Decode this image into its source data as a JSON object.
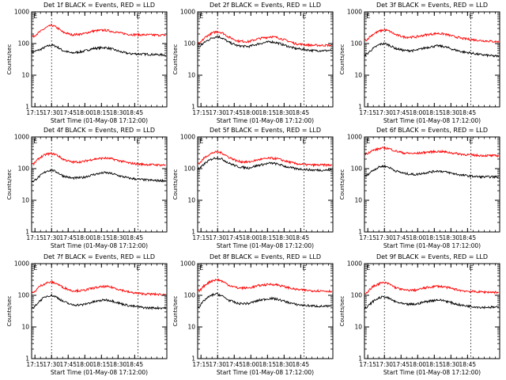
{
  "figure": {
    "background": "#ffffff",
    "events_color": "#000000",
    "lld_color": "#ff0000"
  },
  "chart_data": [
    {
      "type": "line",
      "title": "Det 1f BLACK = Events, RED = LLD",
      "xlabel": "Start Time (01-May-08 17:12:00)",
      "ylabel": "Counts/sec",
      "y_scale": "log",
      "ylim": [
        1,
        1000
      ],
      "xticks": [
        "17:15",
        "17:30",
        "17:45",
        "18:00",
        "18:15",
        "18:30",
        "18:45"
      ],
      "yticks": [
        "1",
        "10",
        "100",
        "1000"
      ],
      "markers": [
        {
          "label": "E",
          "x_minutes": 3
        },
        {
          "label": "E",
          "x_minutes": 96
        }
      ],
      "dotted_lines_minutes": [
        18,
        96
      ],
      "series": [
        {
          "name": "Events",
          "color": "#000000",
          "x_minutes": [
            2,
            8,
            14,
            18,
            22,
            28,
            36,
            46,
            56,
            66,
            72,
            80,
            88,
            96,
            104,
            112,
            118
          ],
          "values": [
            55,
            65,
            82,
            90,
            82,
            60,
            50,
            56,
            70,
            75,
            68,
            55,
            48,
            47,
            46,
            45,
            44
          ]
        },
        {
          "name": "LLD",
          "color": "#ff0000",
          "x_minutes": [
            2,
            8,
            14,
            18,
            22,
            28,
            36,
            46,
            56,
            66,
            72,
            80,
            88,
            96,
            104,
            112,
            118
          ],
          "values": [
            170,
            240,
            330,
            380,
            330,
            230,
            190,
            200,
            250,
            265,
            245,
            215,
            195,
            190,
            188,
            186,
            185
          ]
        }
      ]
    },
    {
      "type": "line",
      "title": "Det 2f BLACK = Events, RED = LLD",
      "xlabel": "Start Time (01-May-08 17:12:00)",
      "ylabel": "Counts/sec",
      "y_scale": "log",
      "ylim": [
        1,
        1000
      ],
      "xticks": [
        "17:15",
        "17:30",
        "17:45",
        "18:00",
        "18:15",
        "18:30",
        "18:45"
      ],
      "yticks": [
        "1",
        "10",
        "100",
        "1000"
      ],
      "markers": [
        {
          "label": "E",
          "x_minutes": 3
        },
        {
          "label": "E",
          "x_minutes": 96
        }
      ],
      "dotted_lines_minutes": [
        18,
        96
      ],
      "series": [
        {
          "name": "Events",
          "color": "#000000",
          "x_minutes": [
            2,
            8,
            14,
            18,
            22,
            28,
            36,
            46,
            56,
            66,
            72,
            80,
            88,
            96,
            104,
            112,
            118
          ],
          "values": [
            80,
            120,
            155,
            170,
            150,
            110,
            85,
            80,
            100,
            115,
            105,
            85,
            70,
            65,
            60,
            60,
            60
          ]
        },
        {
          "name": "LLD",
          "color": "#ff0000",
          "x_minutes": [
            2,
            8,
            14,
            18,
            22,
            28,
            36,
            46,
            56,
            66,
            72,
            80,
            88,
            96,
            104,
            112,
            118
          ],
          "values": [
            100,
            170,
            220,
            240,
            220,
            160,
            120,
            115,
            145,
            165,
            155,
            125,
            100,
            92,
            88,
            88,
            88
          ]
        }
      ]
    },
    {
      "type": "line",
      "title": "Det 3f BLACK = Events, RED = LLD",
      "xlabel": "Start Time (01-May-08 17:12:00)",
      "ylabel": "Counts/sec",
      "y_scale": "log",
      "ylim": [
        1,
        1000
      ],
      "xticks": [
        "17:15",
        "17:30",
        "17:45",
        "18:00",
        "18:15",
        "18:30",
        "18:45"
      ],
      "yticks": [
        "1",
        "10",
        "100",
        "1000"
      ],
      "markers": [
        {
          "label": "E",
          "x_minutes": 3
        },
        {
          "label": "E",
          "x_minutes": 96
        }
      ],
      "dotted_lines_minutes": [
        18,
        96
      ],
      "series": [
        {
          "name": "Events",
          "color": "#000000",
          "x_minutes": [
            2,
            8,
            14,
            18,
            22,
            28,
            36,
            46,
            56,
            66,
            72,
            80,
            88,
            96,
            104,
            112,
            118
          ],
          "values": [
            45,
            70,
            95,
            100,
            90,
            70,
            60,
            60,
            75,
            85,
            80,
            65,
            55,
            50,
            45,
            42,
            40
          ]
        },
        {
          "name": "LLD",
          "color": "#ff0000",
          "x_minutes": [
            2,
            8,
            14,
            18,
            22,
            28,
            36,
            46,
            56,
            66,
            72,
            80,
            88,
            96,
            104,
            112,
            118
          ],
          "values": [
            130,
            200,
            250,
            270,
            250,
            190,
            160,
            160,
            190,
            210,
            200,
            170,
            145,
            135,
            125,
            120,
            115
          ]
        }
      ]
    },
    {
      "type": "line",
      "title": "Det 4f BLACK = Events, RED = LLD",
      "xlabel": "Start Time (01-May-08 17:12:00)",
      "ylabel": "Counts/sec",
      "y_scale": "log",
      "ylim": [
        1,
        1000
      ],
      "xticks": [
        "17:15",
        "17:30",
        "17:45",
        "18:00",
        "18:15",
        "18:30",
        "18:45"
      ],
      "yticks": [
        "1",
        "10",
        "100",
        "1000"
      ],
      "markers": [
        {
          "label": "E",
          "x_minutes": 3
        },
        {
          "label": "E",
          "x_minutes": 96
        }
      ],
      "dotted_lines_minutes": [
        18,
        96
      ],
      "series": [
        {
          "name": "Events",
          "color": "#000000",
          "x_minutes": [
            2,
            8,
            14,
            18,
            22,
            28,
            36,
            46,
            56,
            66,
            72,
            80,
            88,
            96,
            104,
            112,
            118
          ],
          "values": [
            40,
            60,
            85,
            90,
            80,
            60,
            50,
            52,
            65,
            75,
            70,
            58,
            50,
            46,
            44,
            42,
            42
          ]
        },
        {
          "name": "LLD",
          "color": "#ff0000",
          "x_minutes": [
            2,
            8,
            14,
            18,
            22,
            28,
            36,
            46,
            56,
            66,
            72,
            80,
            88,
            96,
            104,
            112,
            118
          ],
          "values": [
            140,
            230,
            290,
            300,
            280,
            200,
            160,
            165,
            200,
            215,
            205,
            175,
            150,
            140,
            135,
            132,
            130
          ]
        }
      ]
    },
    {
      "type": "line",
      "title": "Det 5f BLACK = Events, RED = LLD",
      "xlabel": "Start Time (01-May-08 17:12:00)",
      "ylabel": "Counts/sec",
      "y_scale": "log",
      "ylim": [
        1,
        1000
      ],
      "xticks": [
        "17:15",
        "17:30",
        "17:45",
        "18:00",
        "18:15",
        "18:30",
        "18:45"
      ],
      "yticks": [
        "1",
        "10",
        "100",
        "1000"
      ],
      "markers": [
        {
          "label": "E",
          "x_minutes": 3
        },
        {
          "label": "E",
          "x_minutes": 96
        }
      ],
      "dotted_lines_minutes": [
        18,
        96
      ],
      "series": [
        {
          "name": "Events",
          "color": "#000000",
          "x_minutes": [
            2,
            8,
            14,
            18,
            22,
            28,
            36,
            46,
            56,
            66,
            72,
            80,
            88,
            96,
            104,
            112,
            118
          ],
          "values": [
            100,
            160,
            210,
            220,
            200,
            150,
            115,
            105,
            130,
            150,
            140,
            115,
            100,
            95,
            90,
            90,
            90
          ]
        },
        {
          "name": "LLD",
          "color": "#ff0000",
          "x_minutes": [
            2,
            8,
            14,
            18,
            22,
            28,
            36,
            46,
            56,
            66,
            72,
            80,
            88,
            96,
            104,
            112,
            118
          ],
          "values": [
            150,
            250,
            320,
            340,
            310,
            230,
            170,
            160,
            195,
            215,
            205,
            170,
            145,
            135,
            130,
            130,
            130
          ]
        }
      ]
    },
    {
      "type": "line",
      "title": "Det 6f BLACK = Events, RED = LLD",
      "xlabel": "Start Time (01-May-08 17:12:00)",
      "ylabel": "Counts/sec",
      "y_scale": "log",
      "ylim": [
        1,
        1000
      ],
      "xticks": [
        "17:15",
        "17:30",
        "17:45",
        "18:00",
        "18:15",
        "18:30",
        "18:45"
      ],
      "yticks": [
        "1",
        "10",
        "100",
        "1000"
      ],
      "markers": [
        {
          "label": "E",
          "x_minutes": 3
        },
        {
          "label": "E",
          "x_minutes": 96
        }
      ],
      "dotted_lines_minutes": [
        18,
        96
      ],
      "series": [
        {
          "name": "Events",
          "color": "#000000",
          "x_minutes": [
            2,
            8,
            14,
            18,
            22,
            28,
            36,
            46,
            56,
            66,
            72,
            80,
            88,
            96,
            104,
            112,
            118
          ],
          "values": [
            60,
            90,
            115,
            120,
            110,
            85,
            70,
            65,
            75,
            85,
            80,
            70,
            62,
            58,
            55,
            55,
            55
          ]
        },
        {
          "name": "LLD",
          "color": "#ff0000",
          "x_minutes": [
            2,
            8,
            14,
            18,
            22,
            28,
            36,
            46,
            56,
            66,
            72,
            80,
            88,
            96,
            104,
            112,
            118
          ],
          "values": [
            300,
            380,
            430,
            450,
            430,
            360,
            310,
            300,
            330,
            350,
            340,
            310,
            285,
            270,
            260,
            258,
            255
          ]
        }
      ]
    },
    {
      "type": "line",
      "title": "Det 7f BLACK = Events, RED = LLD",
      "xlabel": "Start Time (01-May-08 17:12:00)",
      "ylabel": "Counts/sec",
      "y_scale": "log",
      "ylim": [
        1,
        1000
      ],
      "xticks": [
        "17:15",
        "17:30",
        "17:45",
        "18:00",
        "18:15",
        "18:30",
        "18:45"
      ],
      "yticks": [
        "1",
        "10",
        "100",
        "1000"
      ],
      "markers": [
        {
          "label": "E",
          "x_minutes": 3
        },
        {
          "label": "E",
          "x_minutes": 96
        }
      ],
      "dotted_lines_minutes": [
        18,
        96
      ],
      "series": [
        {
          "name": "Events",
          "color": "#000000",
          "x_minutes": [
            2,
            8,
            14,
            18,
            22,
            28,
            36,
            46,
            56,
            66,
            72,
            80,
            88,
            96,
            104,
            112,
            118
          ],
          "values": [
            40,
            70,
            95,
            100,
            90,
            65,
            50,
            50,
            62,
            72,
            68,
            55,
            47,
            43,
            40,
            40,
            40
          ]
        },
        {
          "name": "LLD",
          "color": "#ff0000",
          "x_minutes": [
            2,
            8,
            14,
            18,
            22,
            28,
            36,
            46,
            56,
            66,
            72,
            80,
            88,
            96,
            104,
            112,
            118
          ],
          "values": [
            120,
            200,
            250,
            260,
            240,
            180,
            140,
            140,
            170,
            190,
            180,
            150,
            125,
            115,
            110,
            108,
            105
          ]
        }
      ]
    },
    {
      "type": "line",
      "title": "Det 8f BLACK = Events, RED = LLD",
      "xlabel": "Start Time (01-May-08 17:12:00)",
      "ylabel": "Counts/sec",
      "y_scale": "log",
      "ylim": [
        1,
        1000
      ],
      "xticks": [
        "17:15",
        "17:30",
        "17:45",
        "18:00",
        "18:15",
        "18:30",
        "18:45"
      ],
      "yticks": [
        "1",
        "10",
        "100",
        "1000"
      ],
      "markers": [
        {
          "label": "E",
          "x_minutes": 3
        },
        {
          "label": "E",
          "x_minutes": 96
        }
      ],
      "dotted_lines_minutes": [
        18,
        96
      ],
      "series": [
        {
          "name": "Events",
          "color": "#000000",
          "x_minutes": [
            2,
            8,
            14,
            18,
            22,
            28,
            36,
            46,
            56,
            66,
            72,
            80,
            88,
            96,
            104,
            112,
            118
          ],
          "values": [
            45,
            80,
            105,
            110,
            95,
            70,
            55,
            55,
            70,
            80,
            75,
            62,
            52,
            48,
            46,
            45,
            45
          ]
        },
        {
          "name": "LLD",
          "color": "#ff0000",
          "x_minutes": [
            2,
            8,
            14,
            18,
            22,
            28,
            36,
            46,
            56,
            66,
            72,
            80,
            88,
            96,
            104,
            112,
            118
          ],
          "values": [
            140,
            230,
            300,
            310,
            280,
            210,
            170,
            170,
            205,
            225,
            215,
            180,
            155,
            145,
            140,
            138,
            135
          ]
        }
      ]
    },
    {
      "type": "line",
      "title": "Det 9f BLACK = Events, RED = LLD",
      "xlabel": "Start Time (01-May-08 17:12:00)",
      "ylabel": "Counts/sec",
      "y_scale": "log",
      "ylim": [
        1,
        1000
      ],
      "xticks": [
        "17:15",
        "17:30",
        "17:45",
        "18:00",
        "18:15",
        "18:30",
        "18:45"
      ],
      "yticks": [
        "1",
        "10",
        "100",
        "1000"
      ],
      "markers": [
        {
          "label": "E",
          "x_minutes": 3
        },
        {
          "label": "E",
          "x_minutes": 96
        }
      ],
      "dotted_lines_minutes": [
        18,
        96
      ],
      "series": [
        {
          "name": "Events",
          "color": "#000000",
          "x_minutes": [
            2,
            8,
            14,
            18,
            22,
            28,
            36,
            46,
            56,
            66,
            72,
            80,
            88,
            96,
            104,
            112,
            118
          ],
          "values": [
            40,
            65,
            85,
            90,
            80,
            62,
            52,
            52,
            64,
            72,
            68,
            56,
            48,
            45,
            42,
            42,
            42
          ]
        },
        {
          "name": "LLD",
          "color": "#ff0000",
          "x_minutes": [
            2,
            8,
            14,
            18,
            22,
            28,
            36,
            46,
            56,
            66,
            72,
            80,
            88,
            96,
            104,
            112,
            118
          ],
          "values": [
            120,
            190,
            240,
            250,
            230,
            175,
            145,
            145,
            175,
            195,
            185,
            160,
            140,
            132,
            128,
            126,
            125
          ]
        }
      ]
    }
  ]
}
